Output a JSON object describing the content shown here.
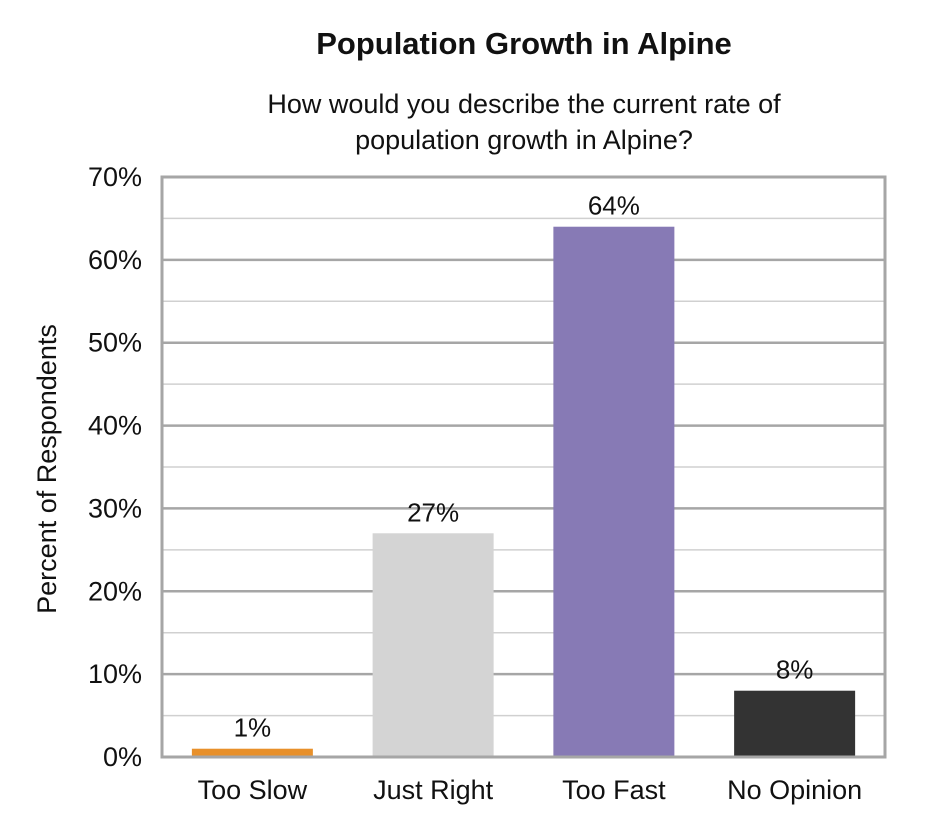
{
  "chart_data": {
    "type": "bar",
    "title": "Population Growth in Alpine",
    "subtitle": "How would you describe the current rate of population growth in Alpine?",
    "ylabel": "Percent of Respondents",
    "xlabel": "",
    "categories": [
      "Too Slow",
      "Just Right",
      "Too Fast",
      "No Opinion"
    ],
    "values": [
      1,
      27,
      64,
      8
    ],
    "data_labels": [
      "1%",
      "27%",
      "64%",
      "8%"
    ],
    "colors": [
      "#e8902a",
      "#d4d4d4",
      "#877ab5",
      "#333333"
    ],
    "ylim": [
      0,
      70
    ],
    "yticks": [
      0,
      10,
      20,
      30,
      40,
      50,
      60,
      70
    ],
    "ytick_labels": [
      "0%",
      "10%",
      "20%",
      "30%",
      "40%",
      "50%",
      "60%",
      "70%"
    ],
    "grid": true,
    "legend": "none"
  }
}
